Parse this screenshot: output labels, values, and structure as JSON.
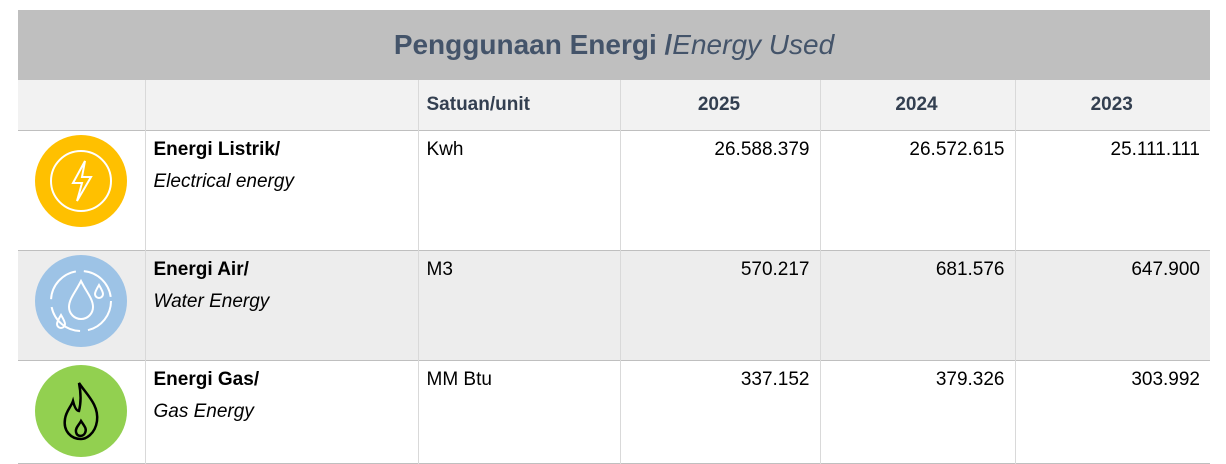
{
  "title": {
    "main": "Penggunaan Energi /",
    "italic": "Energy Used"
  },
  "table": {
    "headers": [
      "Satuan/unit",
      "2025",
      "2024",
      "2023"
    ],
    "rows": [
      {
        "label": "Energi Listrik/",
        "label_en": "Electrical energy",
        "unit": "Kwh",
        "values": [
          "26.588.379",
          "26.572.615",
          "25.111.111"
        ]
      },
      {
        "label": "Energi Air/",
        "label_en": "Water Energy",
        "unit": "M3",
        "values": [
          "570.217",
          "681.576",
          "647.900"
        ]
      },
      {
        "label": "Energi Gas/",
        "label_en": "Gas Energy",
        "unit": "MM Btu",
        "values": [
          "337.152",
          "379.326",
          "303.992"
        ]
      }
    ]
  }
}
